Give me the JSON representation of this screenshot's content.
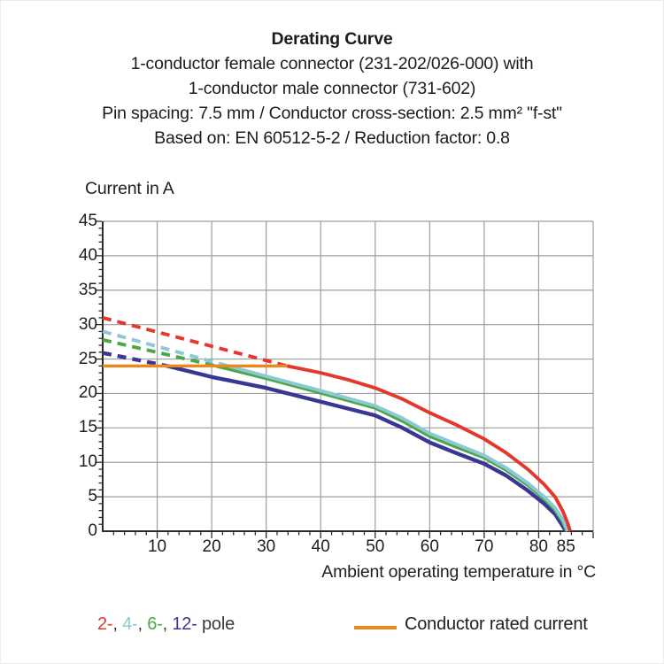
{
  "header": {
    "title": "Derating Curve",
    "subtitle_lines": [
      "1-conductor female connector (231-202/026-000) with",
      "1-conductor male connector (731-602)",
      "Pin spacing: 7.5 mm / Conductor cross-section: 2.5 mm² \"f-st\"",
      "Based on: EN 60512-5-2 / Reduction factor: 0.8"
    ]
  },
  "chart_data": {
    "type": "line",
    "title": "Derating Curve",
    "ylabel": "Current in A",
    "xlabel": "Ambient operating temperature in °C",
    "xlim": [
      0,
      90
    ],
    "ylim": [
      0,
      45
    ],
    "x_major_ticks": [
      10,
      20,
      30,
      40,
      50,
      60,
      70,
      80,
      85
    ],
    "y_major_ticks": [
      0,
      5,
      10,
      15,
      20,
      25,
      30,
      35,
      40,
      45
    ],
    "x_minor_step": 2,
    "y_minor_step": 1,
    "grid": true,
    "grid_color": "#9e9e9e",
    "axis_color": "#2b2b2b",
    "note": "curves are dashed above the conductor rated current (24 A) and solid below it; all curves fall to 0 A at ~85 °C",
    "series": [
      {
        "name": "12-pole",
        "color": "#3a3794",
        "width": 4.4,
        "dashed_points": [
          [
            0,
            25.9
          ],
          [
            11.8,
            24
          ]
        ],
        "solid_points": [
          [
            11.8,
            24
          ],
          [
            20,
            22.4
          ],
          [
            30,
            20.8
          ],
          [
            40,
            18.8
          ],
          [
            50,
            16.8
          ],
          [
            55,
            15.0
          ],
          [
            60,
            12.9
          ],
          [
            65,
            11.3
          ],
          [
            70,
            9.8
          ],
          [
            74,
            8.1
          ],
          [
            78,
            5.9
          ],
          [
            81,
            4.0
          ],
          [
            83,
            2.5
          ],
          [
            84.3,
            0.9
          ],
          [
            85,
            0
          ]
        ]
      },
      {
        "name": "6-pole",
        "color": "#4ba748",
        "width": 3.9,
        "dashed_points": [
          [
            0,
            27.8
          ],
          [
            20.8,
            24
          ]
        ],
        "solid_points": [
          [
            20.8,
            24
          ],
          [
            30,
            22.2
          ],
          [
            40,
            20.1
          ],
          [
            50,
            17.9
          ],
          [
            55,
            16.0
          ],
          [
            60,
            13.8
          ],
          [
            65,
            12.2
          ],
          [
            70,
            10.7
          ],
          [
            74,
            8.9
          ],
          [
            78,
            6.7
          ],
          [
            81,
            4.7
          ],
          [
            83,
            3.1
          ],
          [
            84.4,
            1.4
          ],
          [
            85.2,
            0
          ]
        ]
      },
      {
        "name": "4-pole",
        "color": "#8cc8d5",
        "width": 3.9,
        "dashed_points": [
          [
            0,
            29.0
          ],
          [
            23,
            24
          ]
        ],
        "solid_points": [
          [
            23,
            24
          ],
          [
            30,
            22.5
          ],
          [
            40,
            20.4
          ],
          [
            50,
            18.2
          ],
          [
            55,
            16.4
          ],
          [
            60,
            14.2
          ],
          [
            65,
            12.6
          ],
          [
            70,
            11.0
          ],
          [
            74,
            9.2
          ],
          [
            78,
            7.0
          ],
          [
            81,
            5.0
          ],
          [
            83,
            3.4
          ],
          [
            84.5,
            1.6
          ],
          [
            85.3,
            0
          ]
        ]
      },
      {
        "name": "2-pole",
        "color": "#e5382c",
        "width": 3.9,
        "dashed_points": [
          [
            0,
            31.0
          ],
          [
            33.8,
            24
          ]
        ],
        "solid_points": [
          [
            33.8,
            24
          ],
          [
            40,
            23.0
          ],
          [
            45,
            22.0
          ],
          [
            50,
            20.8
          ],
          [
            55,
            19.2
          ],
          [
            60,
            17.2
          ],
          [
            65,
            15.4
          ],
          [
            70,
            13.4
          ],
          [
            74,
            11.4
          ],
          [
            78,
            9.0
          ],
          [
            81,
            6.8
          ],
          [
            83,
            5.0
          ],
          [
            84.5,
            2.8
          ],
          [
            85.3,
            1.2
          ],
          [
            85.8,
            0
          ]
        ]
      },
      {
        "name": "Conductor rated current",
        "color": "#f0871d",
        "width": 3.4,
        "solid_points": [
          [
            0,
            24
          ],
          [
            33.8,
            24
          ]
        ]
      }
    ]
  },
  "legend": {
    "pole_items": [
      {
        "label": "2-",
        "color": "#e5382c"
      },
      {
        "label": "4-",
        "color": "#8cc8d5"
      },
      {
        "label": "6-",
        "color": "#4ba748"
      },
      {
        "label": "12-",
        "color": "#3a3794"
      }
    ],
    "pole_separator": ", ",
    "pole_suffix": " pole",
    "rated": {
      "label": "Conductor rated current",
      "color": "#f0871d"
    }
  }
}
